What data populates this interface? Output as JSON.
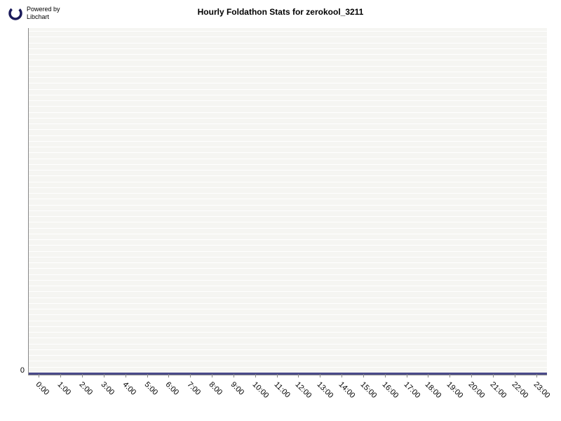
{
  "logo": {
    "powered_by": "Powered by",
    "name": "Libchart"
  },
  "chart": {
    "type": "bar",
    "title": "Hourly Foldathon Stats for zerokool_3211",
    "title_fontsize": 12,
    "title_fontweight": "bold",
    "background_color": "#ffffff",
    "plot_background": "#f5f5f2",
    "grid_color": "#ffffff",
    "gridline_count": 60,
    "axis_color": "#888888",
    "bottom_line_color": "#4a4a8a",
    "x_categories": [
      "0:00",
      "1:00",
      "2:00",
      "3:00",
      "4:00",
      "5:00",
      "6:00",
      "7:00",
      "8:00",
      "9:00",
      "10:00",
      "11:00",
      "12:00",
      "13:00",
      "14:00",
      "15:00",
      "16:00",
      "17:00",
      "18:00",
      "19:00",
      "20:00",
      "21:00",
      "22:00",
      "23:00"
    ],
    "y_values": [
      0,
      0,
      0,
      0,
      0,
      0,
      0,
      0,
      0,
      0,
      0,
      0,
      0,
      0,
      0,
      0,
      0,
      0,
      0,
      0,
      0,
      0,
      0,
      0
    ],
    "y_ticks": [
      0
    ],
    "ylim": [
      0,
      1
    ],
    "label_fontsize": 11,
    "x_label_rotation": 45
  }
}
